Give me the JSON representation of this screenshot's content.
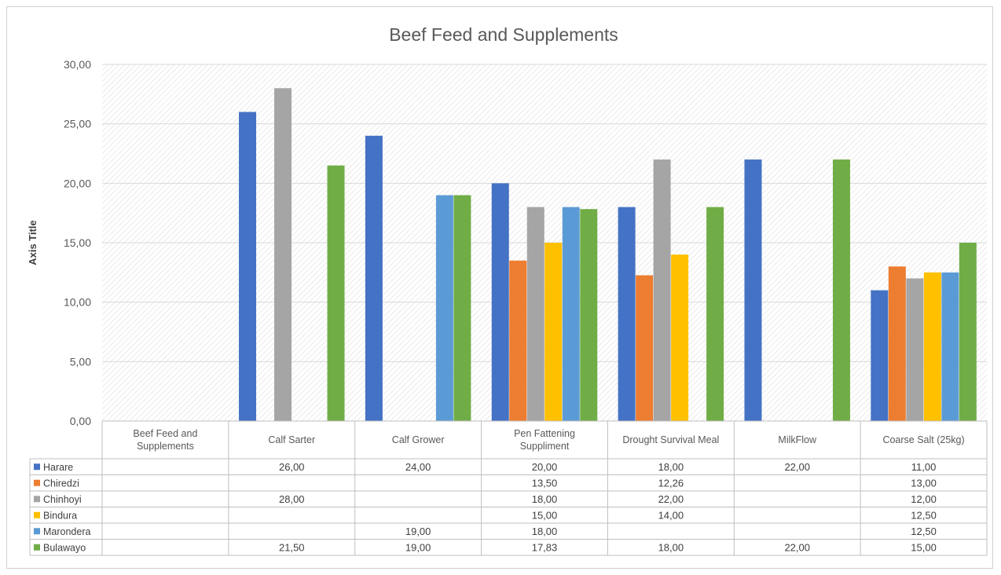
{
  "chart_data": {
    "type": "bar",
    "title": "Beef Feed and Supplements",
    "ylabel": "Axis Title",
    "xlabel": "",
    "ylim": [
      0,
      30
    ],
    "yticks": [
      "0,00",
      "5,00",
      "10,00",
      "15,00",
      "20,00",
      "25,00",
      "30,00"
    ],
    "grid": true,
    "legend": "data-table",
    "categories": [
      "Beef Feed and Supplements",
      "Calf Sarter",
      "Calf Grower",
      "Pen Fattening Suppliment",
      "Drought Survival Meal",
      "MilkFlow",
      "Coarse Salt (25kg)"
    ],
    "series": [
      {
        "name": "Harare",
        "color": "#4472C4",
        "values": [
          null,
          26.0,
          24.0,
          20.0,
          18.0,
          22.0,
          11.0
        ],
        "labels": [
          "",
          "26,00",
          "24,00",
          "20,00",
          "18,00",
          "22,00",
          "11,00"
        ]
      },
      {
        "name": "Chiredzi",
        "color": "#ED7D31",
        "values": [
          null,
          null,
          null,
          13.5,
          12.26,
          null,
          13.0
        ],
        "labels": [
          "",
          "",
          "",
          "13,50",
          "12,26",
          "",
          "13,00"
        ]
      },
      {
        "name": "Chinhoyi",
        "color": "#A5A5A5",
        "values": [
          null,
          28.0,
          null,
          18.0,
          22.0,
          null,
          12.0
        ],
        "labels": [
          "",
          "28,00",
          "",
          "18,00",
          "22,00",
          "",
          "12,00"
        ]
      },
      {
        "name": "Bindura",
        "color": "#FFC000",
        "values": [
          null,
          null,
          null,
          15.0,
          14.0,
          null,
          12.5
        ],
        "labels": [
          "",
          "",
          "",
          "15,00",
          "14,00",
          "",
          "12,50"
        ]
      },
      {
        "name": "Marondera",
        "color": "#5B9BD5",
        "values": [
          null,
          null,
          19.0,
          18.0,
          null,
          null,
          12.5
        ],
        "labels": [
          "",
          "",
          "19,00",
          "18,00",
          "",
          "",
          "12,50"
        ]
      },
      {
        "name": "Bulawayo",
        "color": "#70AD47",
        "values": [
          null,
          21.5,
          19.0,
          17.83,
          18.0,
          22.0,
          15.0
        ],
        "labels": [
          "",
          "21,50",
          "19,00",
          "17,83",
          "18,00",
          "22,00",
          "15,00"
        ]
      }
    ]
  }
}
